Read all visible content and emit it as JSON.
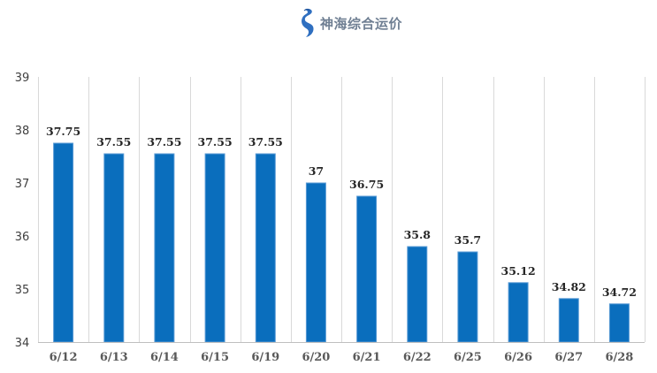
{
  "logo": {
    "icon": "seahorse-icon",
    "color": "#2f6fc0"
  },
  "chart_data": {
    "type": "bar",
    "title": "神海综合运价",
    "categories": [
      "6/12",
      "6/13",
      "6/14",
      "6/15",
      "6/19",
      "6/20",
      "6/21",
      "6/22",
      "6/25",
      "6/26",
      "6/27",
      "6/28"
    ],
    "values": [
      37.75,
      37.55,
      37.55,
      37.55,
      37.55,
      37,
      36.75,
      35.8,
      35.7,
      35.12,
      34.82,
      34.72
    ],
    "data_labels": [
      "37.75",
      "37.55",
      "37.55",
      "37.55",
      "37.55",
      "37",
      "36.75",
      "35.8",
      "35.7",
      "35.12",
      "34.82",
      "34.72"
    ],
    "yticks": [
      "34",
      "35",
      "36",
      "37",
      "38",
      "39"
    ],
    "ylim": [
      34,
      39
    ],
    "xlabel": "",
    "ylabel": "",
    "grid": "vertical category separators",
    "legend": "none",
    "bar_color": "#0a6ebd",
    "bar_edge_color": "#5a9bd5"
  }
}
